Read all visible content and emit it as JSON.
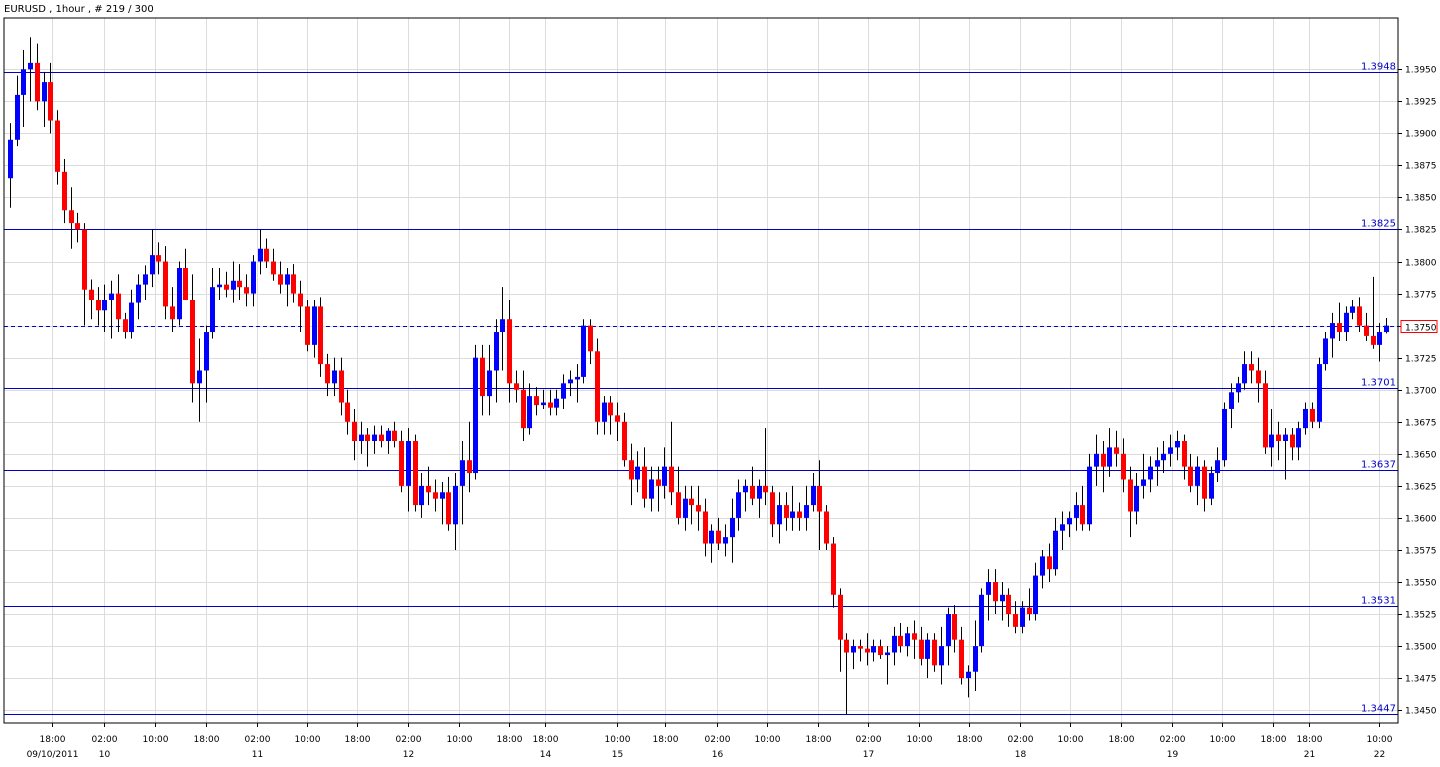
{
  "header": {
    "text": "EURUSD , 1hour , # 219 / 300"
  },
  "chart_data": {
    "type": "candlestick",
    "symbol": "EURUSD",
    "timeframe": "1hour",
    "ylim": [
      1.344,
      1.399
    ],
    "y_ticks": [
      "1.3950",
      "1.3925",
      "1.3900",
      "1.3875",
      "1.3850",
      "1.3825",
      "1.3800",
      "1.3775",
      "1.3750",
      "1.3725",
      "1.3700",
      "1.3675",
      "1.3650",
      "1.3625",
      "1.3600",
      "1.3575",
      "1.3550",
      "1.3525",
      "1.3500",
      "1.3475",
      "1.3450"
    ],
    "x_ticks": [
      {
        "label": "18:00",
        "sub": "09/10/2011"
      },
      {
        "label": "02:00",
        "sub": "10"
      },
      {
        "label": "10:00",
        "sub": ""
      },
      {
        "label": "18:00",
        "sub": ""
      },
      {
        "label": "02:00",
        "sub": "11"
      },
      {
        "label": "10:00",
        "sub": ""
      },
      {
        "label": "18:00",
        "sub": ""
      },
      {
        "label": "02:00",
        "sub": "12"
      },
      {
        "label": "10:00",
        "sub": ""
      },
      {
        "label": "18:00",
        "sub": ""
      },
      {
        "label": "18:00",
        "sub": "14"
      },
      {
        "label": "10:00",
        "sub": "15"
      },
      {
        "label": "18:00",
        "sub": ""
      },
      {
        "label": "02:00",
        "sub": "16"
      },
      {
        "label": "10:00",
        "sub": ""
      },
      {
        "label": "18:00",
        "sub": ""
      },
      {
        "label": "02:00",
        "sub": "17"
      },
      {
        "label": "10:00",
        "sub": ""
      },
      {
        "label": "18:00",
        "sub": ""
      },
      {
        "label": "02:00",
        "sub": "18"
      },
      {
        "label": "10:00",
        "sub": ""
      },
      {
        "label": "18:00",
        "sub": ""
      },
      {
        "label": "02:00",
        "sub": "19"
      },
      {
        "label": "10:00",
        "sub": ""
      },
      {
        "label": "18:00",
        "sub": ""
      },
      {
        "label": "18:00",
        "sub": "21"
      },
      {
        "label": "10:00",
        "sub": "22"
      }
    ],
    "levels": [
      {
        "price": 1.3948,
        "label": "1.3948"
      },
      {
        "price": 1.3825,
        "label": "1.3825"
      },
      {
        "price": 1.3701,
        "label": "1.3701"
      },
      {
        "price": 1.3637,
        "label": "1.3637"
      },
      {
        "price": 1.3531,
        "label": "1.3531"
      },
      {
        "price": 1.3447,
        "label": "1.3447"
      }
    ],
    "current_price": {
      "price": 1.375,
      "label": "1.3750"
    },
    "grid": true,
    "colors": {
      "up": "#0000ff",
      "down": "#ff0000",
      "wick": "#000000",
      "level_line": "#0000c8",
      "grid": "#dcdcdc"
    },
    "candles": [
      [
        1.3865,
        1.3908,
        1.3842,
        1.3895
      ],
      [
        1.3895,
        1.3945,
        1.389,
        1.393
      ],
      [
        1.393,
        1.3965,
        1.3905,
        1.395
      ],
      [
        1.395,
        1.3975,
        1.3925,
        1.3955
      ],
      [
        1.3955,
        1.397,
        1.3918,
        1.3925
      ],
      [
        1.3925,
        1.3948,
        1.3905,
        1.394
      ],
      [
        1.394,
        1.3955,
        1.39,
        1.391
      ],
      [
        1.391,
        1.3918,
        1.386,
        1.387
      ],
      [
        1.387,
        1.388,
        1.383,
        1.384
      ],
      [
        1.384,
        1.3858,
        1.381,
        1.383
      ],
      [
        1.383,
        1.3838,
        1.3815,
        1.3825
      ],
      [
        1.3825,
        1.383,
        1.375,
        1.3778
      ],
      [
        1.3778,
        1.3786,
        1.3755,
        1.377
      ],
      [
        1.377,
        1.378,
        1.375,
        1.3762
      ],
      [
        1.3762,
        1.3782,
        1.3745,
        1.377
      ],
      [
        1.377,
        1.3785,
        1.374,
        1.3775
      ],
      [
        1.3775,
        1.379,
        1.3745,
        1.3755
      ],
      [
        1.3755,
        1.376,
        1.374,
        1.3745
      ],
      [
        1.3745,
        1.3778,
        1.374,
        1.3768
      ],
      [
        1.3768,
        1.379,
        1.3755,
        1.3782
      ],
      [
        1.3782,
        1.3797,
        1.377,
        1.379
      ],
      [
        1.379,
        1.3825,
        1.378,
        1.3805
      ],
      [
        1.3805,
        1.3815,
        1.379,
        1.38
      ],
      [
        1.38,
        1.3812,
        1.3755,
        1.3765
      ],
      [
        1.3765,
        1.378,
        1.3745,
        1.3755
      ],
      [
        1.3755,
        1.38,
        1.375,
        1.3795
      ],
      [
        1.3795,
        1.381,
        1.377,
        1.377
      ],
      [
        1.377,
        1.379,
        1.369,
        1.3705
      ],
      [
        1.3705,
        1.374,
        1.3675,
        1.3715
      ],
      [
        1.3715,
        1.375,
        1.369,
        1.3745
      ],
      [
        1.3745,
        1.3795,
        1.374,
        1.378
      ],
      [
        1.378,
        1.3795,
        1.377,
        1.3782
      ],
      [
        1.3782,
        1.3792,
        1.3772,
        1.3778
      ],
      [
        1.3778,
        1.38,
        1.3768,
        1.3785
      ],
      [
        1.3785,
        1.3798,
        1.377,
        1.378
      ],
      [
        1.378,
        1.379,
        1.3765,
        1.3775
      ],
      [
        1.3775,
        1.3805,
        1.3765,
        1.38
      ],
      [
        1.38,
        1.3825,
        1.379,
        1.381
      ],
      [
        1.381,
        1.3818,
        1.3795,
        1.38
      ],
      [
        1.38,
        1.381,
        1.3785,
        1.379
      ],
      [
        1.379,
        1.38,
        1.3775,
        1.3782
      ],
      [
        1.3782,
        1.3795,
        1.3765,
        1.379
      ],
      [
        1.379,
        1.3798,
        1.3768,
        1.3775
      ],
      [
        1.3775,
        1.3785,
        1.3745,
        1.3765
      ],
      [
        1.3765,
        1.377,
        1.373,
        1.3735
      ],
      [
        1.3735,
        1.377,
        1.3725,
        1.3765
      ],
      [
        1.3765,
        1.3772,
        1.371,
        1.372
      ],
      [
        1.372,
        1.3728,
        1.3695,
        1.3705
      ],
      [
        1.3705,
        1.3725,
        1.3695,
        1.3715
      ],
      [
        1.3715,
        1.3725,
        1.368,
        1.369
      ],
      [
        1.369,
        1.37,
        1.3665,
        1.3675
      ],
      [
        1.3675,
        1.3685,
        1.3645,
        1.366
      ],
      [
        1.366,
        1.3675,
        1.365,
        1.3665
      ],
      [
        1.3665,
        1.367,
        1.364,
        1.366
      ],
      [
        1.366,
        1.3672,
        1.365,
        1.3665
      ],
      [
        1.3665,
        1.3672,
        1.3655,
        1.366
      ],
      [
        1.366,
        1.367,
        1.365,
        1.3668
      ],
      [
        1.3668,
        1.3675,
        1.3655,
        1.366
      ],
      [
        1.366,
        1.3668,
        1.362,
        1.3625
      ],
      [
        1.3625,
        1.367,
        1.3605,
        1.366
      ],
      [
        1.366,
        1.3665,
        1.3605,
        1.361
      ],
      [
        1.361,
        1.3635,
        1.36,
        1.3625
      ],
      [
        1.3625,
        1.364,
        1.361,
        1.362
      ],
      [
        1.362,
        1.363,
        1.3605,
        1.3615
      ],
      [
        1.3615,
        1.3628,
        1.3595,
        1.362
      ],
      [
        1.362,
        1.3632,
        1.359,
        1.3595
      ],
      [
        1.3595,
        1.3635,
        1.3575,
        1.3625
      ],
      [
        1.3625,
        1.366,
        1.3595,
        1.3645
      ],
      [
        1.3645,
        1.3675,
        1.362,
        1.3635
      ],
      [
        1.3635,
        1.3735,
        1.363,
        1.3725
      ],
      [
        1.3725,
        1.3735,
        1.368,
        1.3695
      ],
      [
        1.3695,
        1.3735,
        1.368,
        1.3715
      ],
      [
        1.3715,
        1.3755,
        1.369,
        1.3745
      ],
      [
        1.3745,
        1.378,
        1.3715,
        1.3755
      ],
      [
        1.3755,
        1.377,
        1.369,
        1.3705
      ],
      [
        1.3705,
        1.3715,
        1.369,
        1.37
      ],
      [
        1.37,
        1.3715,
        1.366,
        1.367
      ],
      [
        1.367,
        1.3705,
        1.3665,
        1.3695
      ],
      [
        1.3695,
        1.3702,
        1.368,
        1.3688
      ],
      [
        1.3688,
        1.37,
        1.3685,
        1.369
      ],
      [
        1.369,
        1.37,
        1.368,
        1.3686
      ],
      [
        1.3686,
        1.37,
        1.368,
        1.3693
      ],
      [
        1.3693,
        1.3712,
        1.3685,
        1.3705
      ],
      [
        1.3705,
        1.3715,
        1.3695,
        1.3708
      ],
      [
        1.3708,
        1.372,
        1.369,
        1.371
      ],
      [
        1.371,
        1.3755,
        1.3705,
        1.375
      ],
      [
        1.375,
        1.3755,
        1.372,
        1.373
      ],
      [
        1.373,
        1.374,
        1.3665,
        1.3675
      ],
      [
        1.3675,
        1.3695,
        1.3665,
        1.369
      ],
      [
        1.369,
        1.3695,
        1.3665,
        1.368
      ],
      [
        1.368,
        1.369,
        1.366,
        1.3675
      ],
      [
        1.3675,
        1.3682,
        1.364,
        1.3645
      ],
      [
        1.3645,
        1.3658,
        1.361,
        1.363
      ],
      [
        1.363,
        1.3652,
        1.362,
        1.364
      ],
      [
        1.364,
        1.3655,
        1.3608,
        1.3615
      ],
      [
        1.3615,
        1.364,
        1.3605,
        1.363
      ],
      [
        1.363,
        1.364,
        1.3605,
        1.3625
      ],
      [
        1.3625,
        1.3655,
        1.3615,
        1.364
      ],
      [
        1.364,
        1.3675,
        1.361,
        1.362
      ],
      [
        1.362,
        1.364,
        1.3595,
        1.36
      ],
      [
        1.36,
        1.3625,
        1.359,
        1.3615
      ],
      [
        1.3615,
        1.3625,
        1.3595,
        1.361
      ],
      [
        1.361,
        1.3625,
        1.359,
        1.3605
      ],
      [
        1.3605,
        1.3615,
        1.357,
        1.358
      ],
      [
        1.358,
        1.3595,
        1.3565,
        1.359
      ],
      [
        1.359,
        1.36,
        1.3575,
        1.358
      ],
      [
        1.358,
        1.3595,
        1.357,
        1.3585
      ],
      [
        1.3585,
        1.3615,
        1.3565,
        1.36
      ],
      [
        1.36,
        1.363,
        1.359,
        1.362
      ],
      [
        1.362,
        1.363,
        1.3605,
        1.3625
      ],
      [
        1.3625,
        1.364,
        1.361,
        1.3615
      ],
      [
        1.3615,
        1.363,
        1.36,
        1.3625
      ],
      [
        1.3625,
        1.367,
        1.361,
        1.362
      ],
      [
        1.362,
        1.3625,
        1.3585,
        1.3595
      ],
      [
        1.3595,
        1.362,
        1.358,
        1.361
      ],
      [
        1.361,
        1.362,
        1.359,
        1.36
      ],
      [
        1.36,
        1.3625,
        1.359,
        1.3605
      ],
      [
        1.3605,
        1.3612,
        1.359,
        1.36
      ],
      [
        1.36,
        1.3625,
        1.359,
        1.361
      ],
      [
        1.361,
        1.3635,
        1.3605,
        1.3625
      ],
      [
        1.3625,
        1.3645,
        1.3575,
        1.3605
      ],
      [
        1.3605,
        1.361,
        1.3575,
        1.358
      ],
      [
        1.358,
        1.3585,
        1.353,
        1.354
      ],
      [
        1.354,
        1.3545,
        1.348,
        1.3505
      ],
      [
        1.3505,
        1.351,
        1.3447,
        1.3495
      ],
      [
        1.3495,
        1.3505,
        1.3482,
        1.35
      ],
      [
        1.35,
        1.3505,
        1.3488,
        1.3498
      ],
      [
        1.3498,
        1.351,
        1.3485,
        1.3495
      ],
      [
        1.3495,
        1.3505,
        1.3488,
        1.35
      ],
      [
        1.35,
        1.3505,
        1.349,
        1.3493
      ],
      [
        1.3493,
        1.35,
        1.347,
        1.3495
      ],
      [
        1.3495,
        1.3515,
        1.3485,
        1.3508
      ],
      [
        1.3508,
        1.3518,
        1.3495,
        1.35
      ],
      [
        1.35,
        1.3515,
        1.3492,
        1.351
      ],
      [
        1.351,
        1.352,
        1.349,
        1.3505
      ],
      [
        1.3505,
        1.3515,
        1.3485,
        1.349
      ],
      [
        1.349,
        1.351,
        1.3475,
        1.3505
      ],
      [
        1.3505,
        1.351,
        1.348,
        1.3485
      ],
      [
        1.3485,
        1.3515,
        1.347,
        1.35
      ],
      [
        1.35,
        1.353,
        1.3485,
        1.3525
      ],
      [
        1.3525,
        1.3532,
        1.3495,
        1.3505
      ],
      [
        1.3505,
        1.3515,
        1.347,
        1.3475
      ],
      [
        1.3475,
        1.3485,
        1.346,
        1.348
      ],
      [
        1.348,
        1.352,
        1.3465,
        1.35
      ],
      [
        1.35,
        1.3545,
        1.3495,
        1.354
      ],
      [
        1.354,
        1.356,
        1.352,
        1.355
      ],
      [
        1.355,
        1.356,
        1.3525,
        1.3535
      ],
      [
        1.3535,
        1.355,
        1.352,
        1.354
      ],
      [
        1.354,
        1.3545,
        1.3515,
        1.3525
      ],
      [
        1.3525,
        1.3535,
        1.351,
        1.3515
      ],
      [
        1.3515,
        1.3535,
        1.351,
        1.353
      ],
      [
        1.353,
        1.3545,
        1.352,
        1.3525
      ],
      [
        1.3525,
        1.3565,
        1.352,
        1.3555
      ],
      [
        1.3555,
        1.3575,
        1.3545,
        1.357
      ],
      [
        1.357,
        1.358,
        1.355,
        1.356
      ],
      [
        1.356,
        1.36,
        1.3555,
        1.359
      ],
      [
        1.359,
        1.3605,
        1.3575,
        1.3595
      ],
      [
        1.3595,
        1.3605,
        1.3585,
        1.36
      ],
      [
        1.36,
        1.362,
        1.359,
        1.361
      ],
      [
        1.361,
        1.3625,
        1.359,
        1.3595
      ],
      [
        1.3595,
        1.365,
        1.359,
        1.364
      ],
      [
        1.364,
        1.3665,
        1.3625,
        1.365
      ],
      [
        1.365,
        1.366,
        1.362,
        1.364
      ],
      [
        1.364,
        1.367,
        1.3632,
        1.3655
      ],
      [
        1.3655,
        1.3668,
        1.364,
        1.365
      ],
      [
        1.365,
        1.3662,
        1.362,
        1.363
      ],
      [
        1.363,
        1.364,
        1.3585,
        1.3605
      ],
      [
        1.3605,
        1.3635,
        1.3595,
        1.3625
      ],
      [
        1.3625,
        1.365,
        1.3615,
        1.363
      ],
      [
        1.363,
        1.3648,
        1.362,
        1.364
      ],
      [
        1.364,
        1.3655,
        1.3625,
        1.3645
      ],
      [
        1.3645,
        1.366,
        1.3635,
        1.365
      ],
      [
        1.365,
        1.3665,
        1.364,
        1.3655
      ],
      [
        1.3655,
        1.3668,
        1.3645,
        1.366
      ],
      [
        1.366,
        1.3665,
        1.363,
        1.364
      ],
      [
        1.364,
        1.365,
        1.362,
        1.3625
      ],
      [
        1.3625,
        1.3648,
        1.361,
        1.364
      ],
      [
        1.364,
        1.3645,
        1.3605,
        1.3615
      ],
      [
        1.3615,
        1.364,
        1.361,
        1.3635
      ],
      [
        1.3635,
        1.3655,
        1.3628,
        1.3645
      ],
      [
        1.3645,
        1.369,
        1.364,
        1.3685
      ],
      [
        1.3685,
        1.3705,
        1.367,
        1.3698
      ],
      [
        1.3698,
        1.371,
        1.369,
        1.3705
      ],
      [
        1.3705,
        1.373,
        1.37,
        1.372
      ],
      [
        1.372,
        1.373,
        1.3705,
        1.3715
      ],
      [
        1.3715,
        1.3725,
        1.369,
        1.3705
      ],
      [
        1.3705,
        1.3715,
        1.365,
        1.3655
      ],
      [
        1.3655,
        1.3685,
        1.364,
        1.3665
      ],
      [
        1.3665,
        1.3675,
        1.3645,
        1.366
      ],
      [
        1.366,
        1.367,
        1.363,
        1.3665
      ],
      [
        1.3665,
        1.367,
        1.3645,
        1.3655
      ],
      [
        1.3655,
        1.3675,
        1.3645,
        1.367
      ],
      [
        1.367,
        1.369,
        1.3665,
        1.3685
      ],
      [
        1.3685,
        1.369,
        1.367,
        1.3675
      ],
      [
        1.3675,
        1.3725,
        1.367,
        1.372
      ],
      [
        1.372,
        1.3745,
        1.3715,
        1.374
      ],
      [
        1.374,
        1.376,
        1.3725,
        1.3752
      ],
      [
        1.3752,
        1.3768,
        1.3738,
        1.3745
      ],
      [
        1.3745,
        1.3765,
        1.3738,
        1.376
      ],
      [
        1.376,
        1.377,
        1.3755,
        1.3765
      ],
      [
        1.3765,
        1.3772,
        1.3745,
        1.375
      ],
      [
        1.375,
        1.376,
        1.3738,
        1.3742
      ],
      [
        1.3742,
        1.3788,
        1.3732,
        1.3735
      ],
      [
        1.3735,
        1.3752,
        1.3722,
        1.3745
      ],
      [
        1.3745,
        1.3756,
        1.3744,
        1.375
      ]
    ]
  }
}
